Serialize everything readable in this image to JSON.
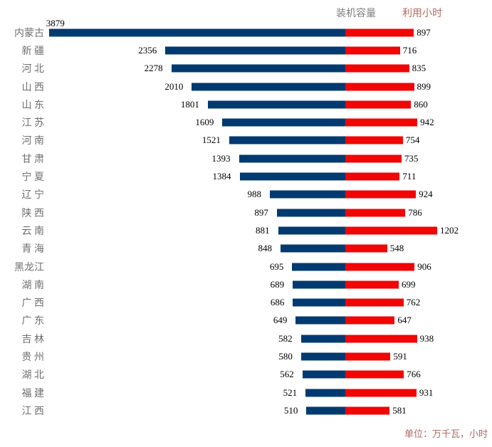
{
  "legend": {
    "capacity": "装机容量",
    "hours": "利用小时"
  },
  "footer": "单位：万千瓦，小时",
  "colors": {
    "capacity_bar": "#003a71",
    "hours_bar": "#f20505",
    "category_label": "#707070",
    "value_label": "#000000",
    "legend_capacity": "#7f7f7f",
    "legend_hours": "#b06a60",
    "footer_text": "#b06a60",
    "background": "#ffffff"
  },
  "chart_data": {
    "type": "bar",
    "variant": "diverging-horizontal-tornado",
    "title": "",
    "unit_note": "单位：万千瓦，小时",
    "legend_position": "top-right",
    "value_labels": "outside-end",
    "grid": false,
    "value_range_hint": [
      0,
      3900
    ],
    "categories": [
      "内蒙古",
      "新 疆",
      "河 北",
      "山 西",
      "山 东",
      "江 苏",
      "河 南",
      "甘 肃",
      "宁 夏",
      "辽 宁",
      "陕 西",
      "云 南",
      "青 海",
      "黑龙江",
      "湖 南",
      "广 西",
      "广 东",
      "吉 林",
      "贵 州",
      "湖 北",
      "福 建",
      "江 西"
    ],
    "series": [
      {
        "name": "装机容量",
        "side": "left",
        "color": "#003a71",
        "values": [
          3879,
          2356,
          2278,
          2010,
          1801,
          1609,
          1521,
          1393,
          1384,
          988,
          897,
          881,
          848,
          695,
          689,
          686,
          649,
          582,
          580,
          562,
          521,
          510
        ]
      },
      {
        "name": "利用小时",
        "side": "right",
        "color": "#f20505",
        "values": [
          897,
          716,
          835,
          899,
          860,
          942,
          754,
          735,
          711,
          924,
          786,
          1202,
          548,
          906,
          699,
          762,
          647,
          938,
          591,
          766,
          931,
          581
        ]
      }
    ]
  }
}
